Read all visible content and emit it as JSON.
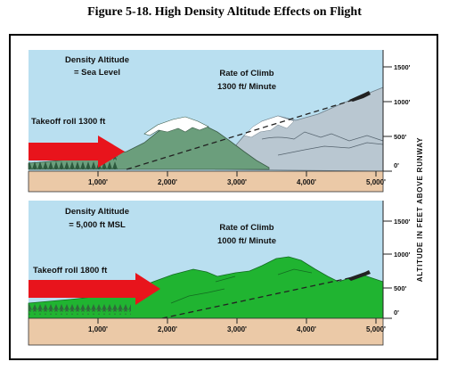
{
  "figure_title": "Figure 5-18. High Density Altitude Effects on Flight",
  "side_label": "ALTITUDE IN FEET ABOVE RUNWAY",
  "panels": [
    {
      "density_line1": "Density Altitude",
      "density_line2": "= Sea Level",
      "climb_line1": "Rate of Climb",
      "climb_line2": "1300 ft/ Minute",
      "takeoff_label": "Takeoff roll 1300 ft",
      "terrain_color": "#6b9e7c",
      "altitude_ticks": [
        "1500'",
        "1000'",
        "500'",
        "0'"
      ],
      "distance_ticks": [
        "1,000'",
        "2,000'",
        "3,000'",
        "4,000'",
        "5,000'"
      ]
    },
    {
      "density_line1": "Density Altitude",
      "density_line2": "= 5,000 ft MSL",
      "climb_line1": "Rate of Climb",
      "climb_line2": "1000 ft/ Minute",
      "takeoff_label": "Takeoff roll 1800 ft",
      "terrain_color": "#20b431",
      "altitude_ticks": [
        "1500'",
        "1000'",
        "500'",
        "0'"
      ],
      "distance_ticks": [
        "1,000'",
        "2,000'",
        "3,000'",
        "4,000'",
        "5,000'"
      ]
    }
  ],
  "colors": {
    "sky": "#b9dff0",
    "ground": "#ebc9a7",
    "arrow": "#e8141c",
    "distant_hills": "#b9c7d1",
    "snow": "#ffffff"
  }
}
